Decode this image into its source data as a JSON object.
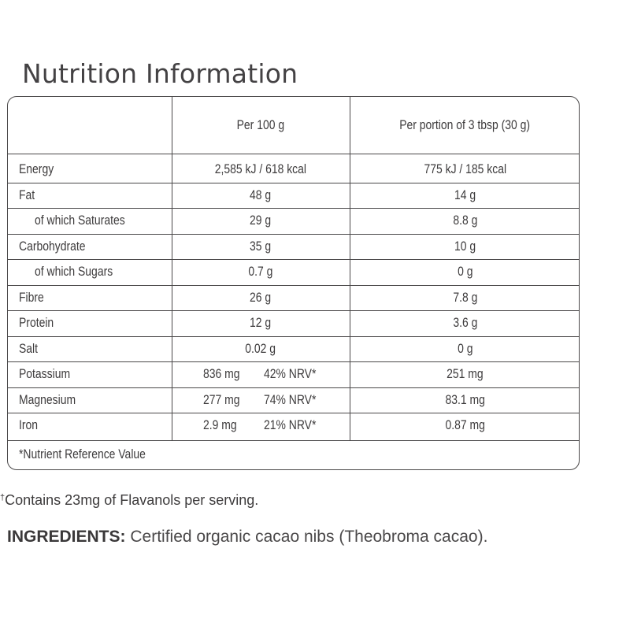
{
  "title": "Nutrition Information",
  "table": {
    "headers": [
      "",
      "Per 100 g",
      "Per portion of 3 tbsp (30 g)"
    ],
    "rows": [
      {
        "nutrient": "Energy",
        "per100": "2,585 kJ / 618 kcal",
        "nrv": "",
        "portion": "775 kJ / 185 kcal"
      },
      {
        "nutrient": "Fat",
        "per100": "48 g",
        "nrv": "",
        "portion": "14 g"
      },
      {
        "nutrient": "of which Saturates",
        "per100": "29 g",
        "nrv": "",
        "portion": "8.8 g"
      },
      {
        "nutrient": "Carbohydrate",
        "per100": "35 g",
        "nrv": "",
        "portion": "10 g"
      },
      {
        "nutrient": "of which Sugars",
        "per100": "0.7 g",
        "nrv": "",
        "portion": "0 g"
      },
      {
        "nutrient": "Fibre",
        "per100": "26 g",
        "nrv": "",
        "portion": "7.8 g"
      },
      {
        "nutrient": "Protein",
        "per100": "12 g",
        "nrv": "",
        "portion": "3.6 g"
      },
      {
        "nutrient": "Salt",
        "per100": "0.02 g",
        "nrv": "",
        "portion": "0 g"
      },
      {
        "nutrient": "Potassium",
        "per100": "836 mg",
        "nrv": "42% NRV*",
        "portion": "251 mg"
      },
      {
        "nutrient": "Magnesium",
        "per100": "277 mg",
        "nrv": "74% NRV*",
        "portion": "83.1 mg"
      },
      {
        "nutrient": "Iron",
        "per100": "2.9 mg",
        "nrv": "21% NRV*",
        "portion": "0.87 mg"
      }
    ],
    "footnote": "*Nutrient Reference Value"
  },
  "flavanols_note": {
    "dagger": "†",
    "text": "Contains 23mg of Flavanols per serving."
  },
  "ingredients": {
    "label": "INGREDIENTS:",
    "text": " Certified organic cacao nibs (Theobroma cacao)."
  },
  "colors": {
    "text": "#3d3b3c",
    "border": "#4a4849",
    "background": "#ffffff"
  }
}
